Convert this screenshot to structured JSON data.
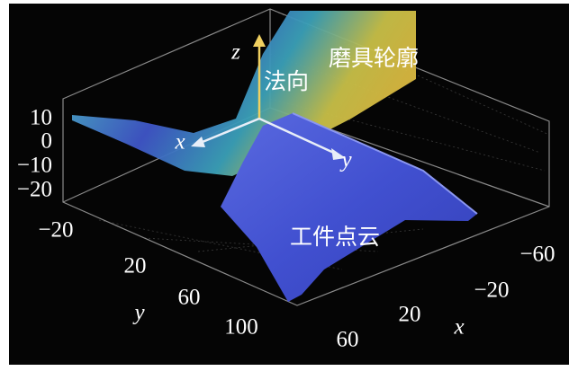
{
  "axes": {
    "z": {
      "label": "z",
      "ticks": [
        "10",
        "0",
        "−10",
        "−20"
      ]
    },
    "y": {
      "label": "y",
      "ticks": [
        "−20",
        "20",
        "60",
        "100"
      ]
    },
    "x": {
      "label": "x",
      "ticks": [
        "−60",
        "−20",
        "20",
        "60"
      ]
    }
  },
  "annotations": {
    "normal_axis": "z",
    "normal": "法向",
    "tool_profile": "磨具轮廓",
    "frame_x": "x",
    "frame_y": "y",
    "workpiece": "工件点云"
  }
}
